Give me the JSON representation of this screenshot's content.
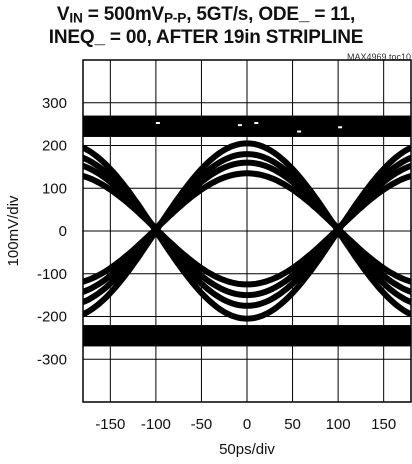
{
  "chart_data": {
    "type": "eye_diagram",
    "title_parts": {
      "vin_sym": "V",
      "vin_sub": "IN",
      "vin_value": " = 500mV",
      "vpp_sub": "P-P",
      "rest": ", 5GT/s, ODE_ = 11,"
    },
    "title_line2": "INEQ_ = 00, AFTER 19in STRIPLINE",
    "figure_id": "MAX4969 toc10",
    "xlabel": "50ps/div",
    "ylabel": "100mV/div",
    "xlim": [
      -180,
      180
    ],
    "ylim": [
      -400,
      400
    ],
    "x_ticks": [
      -150,
      -100,
      -50,
      0,
      50,
      100,
      150
    ],
    "y_ticks": [
      300,
      200,
      100,
      0,
      -100,
      -200,
      -300
    ],
    "grid": true,
    "trace_color": "#000000",
    "eye": {
      "unit_interval_ps": 200,
      "crossing_times_ps": [
        -100,
        100
      ],
      "high_level_mv": [
        220,
        270
      ],
      "low_level_mv": [
        -270,
        -220
      ],
      "transition_levels_mv": [
        [
          -205,
          205
        ],
        [
          -175,
          180
        ],
        [
          -150,
          160
        ],
        [
          -125,
          135
        ]
      ]
    }
  }
}
